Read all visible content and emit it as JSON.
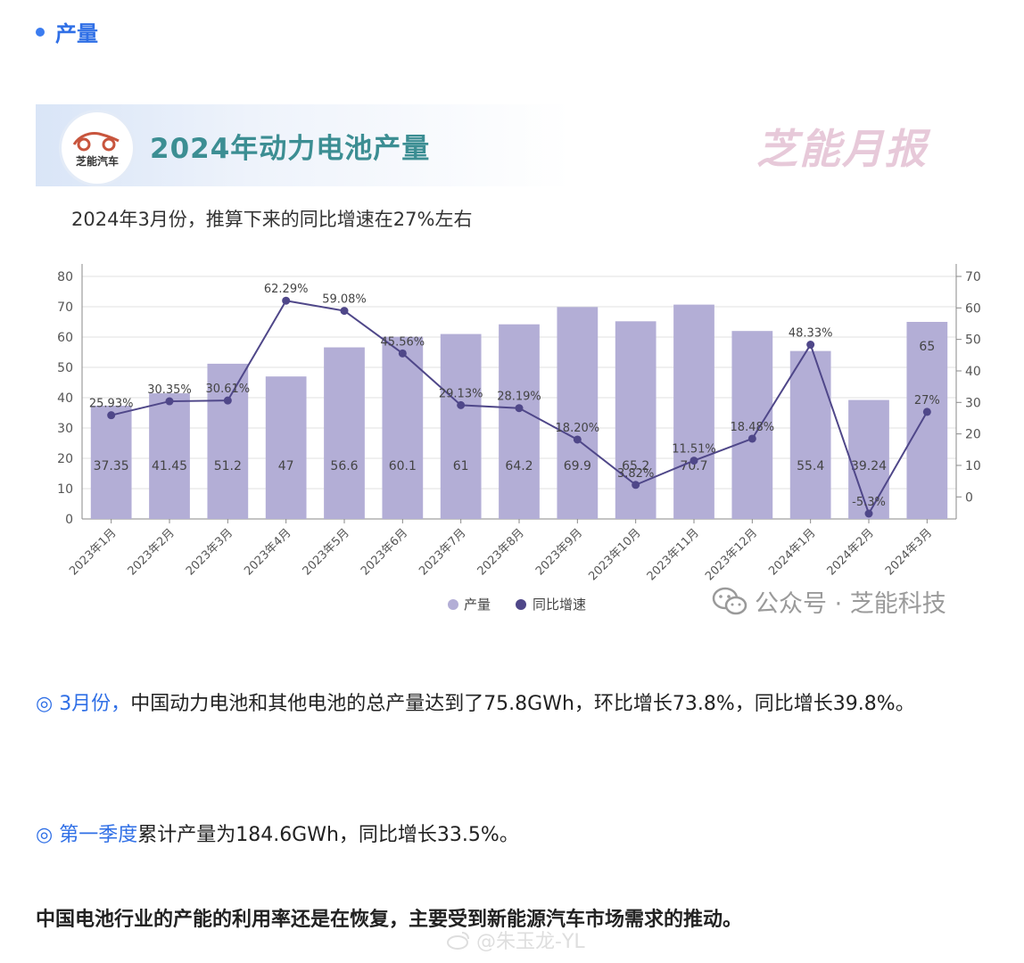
{
  "section": {
    "title": "产量"
  },
  "card": {
    "logo_text": "芝能汽车",
    "title": "2024年动力电池产量",
    "brand": "芝能月报",
    "subtitle": "2024年3月份，推算下来的同比增速在27%左右"
  },
  "chart_data": {
    "type": "bar+line",
    "categories": [
      "2023年1月",
      "2023年2月",
      "2023年3月",
      "2023年4月",
      "2023年5月",
      "2023年6月",
      "2023年7月",
      "2023年8月",
      "2023年9月",
      "2023年10月",
      "2023年11月",
      "2023年12月",
      "2024年1月",
      "2024年2月",
      "2024年3月"
    ],
    "series": [
      {
        "name": "产量",
        "type": "bar",
        "axis": "left",
        "values": [
          37.35,
          41.45,
          51.2,
          47,
          56.6,
          60.1,
          61,
          64.2,
          69.9,
          65.2,
          70.7,
          62,
          55.4,
          39.24,
          65
        ],
        "labels": [
          "37.35",
          "41.45",
          "51.2",
          "47",
          "56.6",
          "60.1",
          "61",
          "64.2",
          "69.9",
          "65.2",
          "70.7",
          "",
          "55.4",
          "39.24",
          "65"
        ],
        "color": "#b3aed6"
      },
      {
        "name": "同比增速",
        "type": "line",
        "axis": "right",
        "values": [
          25.93,
          30.35,
          30.61,
          62.29,
          59.08,
          45.56,
          29.13,
          28.19,
          18.2,
          3.82,
          11.51,
          18.48,
          48.33,
          -5.3,
          27
        ],
        "labels": [
          "25.93%",
          "30.35%",
          "30.61%",
          "62.29%",
          "59.08%",
          "45.56%",
          "29.13%",
          "28.19%",
          "18.20%",
          "3.82%",
          "11.51%",
          "18.48%",
          "48.33%",
          "-5.3%",
          "27%"
        ],
        "color": "#4f4789"
      }
    ],
    "left_axis": {
      "ylim": [
        0,
        80
      ],
      "ticks": [
        0,
        10,
        20,
        30,
        40,
        50,
        60,
        70,
        80
      ]
    },
    "right_axis": {
      "ylim": [
        -7,
        70
      ],
      "ticks": [
        0,
        10,
        20,
        30,
        40,
        50,
        60,
        70
      ]
    },
    "grid": true,
    "legend_position": "bottom-center"
  },
  "watermark": {
    "text": "公众号 · 芝能科技"
  },
  "paragraphs": {
    "p1_highlight": "◎ 3月份，",
    "p1_text": "中国动力电池和其他电池的总产量达到了75.8GWh，环比增长73.8%，同比增长39.8%。",
    "p2_highlight": "◎ 第一季度",
    "p2_text": "累计产量为184.6GWh，同比增长33.5%。",
    "p3_text": "中国电池行业的产能的利用率还是在恢复，主要受到新能源汽车市场需求的推动。"
  },
  "footer_watermark": {
    "text": "@朱玉龙-YL"
  },
  "colors": {
    "accent": "#2f6fe6",
    "title_teal": "#3c8e93",
    "bar": "#b3aed6",
    "line": "#4f4789"
  }
}
